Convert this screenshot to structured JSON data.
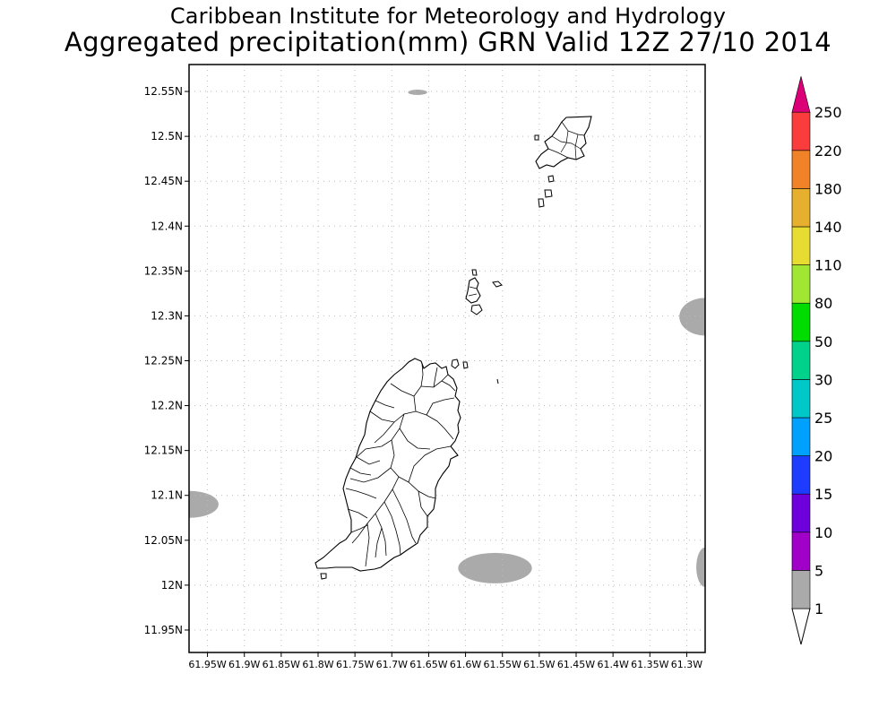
{
  "header": {
    "title": "Caribbean Institute for Meteorology and Hydrology",
    "subtitle": "Aggregated precipitation(mm) GRN Valid 12Z 27/10 2014"
  },
  "map": {
    "lon_range": [
      -61.975,
      -61.275
    ],
    "lat_range": [
      11.925,
      12.58
    ],
    "x_ticks": [
      -61.95,
      -61.9,
      -61.85,
      -61.8,
      -61.75,
      -61.7,
      -61.65,
      -61.6,
      -61.55,
      -61.5,
      -61.45,
      -61.4,
      -61.35,
      -61.3
    ],
    "x_tick_labels": [
      "61.95W",
      "61.9W",
      "61.85W",
      "61.8W",
      "61.75W",
      "61.7W",
      "61.65W",
      "61.6W",
      "61.55W",
      "61.5W",
      "61.45W",
      "61.4W",
      "61.35W",
      "61.3W"
    ],
    "y_ticks": [
      11.95,
      12.0,
      12.05,
      12.1,
      12.15,
      12.2,
      12.25,
      12.3,
      12.35,
      12.4,
      12.45,
      12.5,
      12.55
    ],
    "y_tick_labels": [
      "11.95N",
      "12N",
      "12.05N",
      "12.1N",
      "12.15N",
      "12.2N",
      "12.25N",
      "12.3N",
      "12.35N",
      "12.4N",
      "12.45N",
      "12.5N",
      "12.55N"
    ],
    "grid": true,
    "precip_color": "#aaaaaa",
    "precip_areas": [
      {
        "name": "north-patch",
        "lon": -61.665,
        "lat": 12.549,
        "rlon": 0.013,
        "rlat": 0.003
      },
      {
        "name": "west-patch",
        "lon": -61.975,
        "lat": 12.09,
        "rlon": 0.04,
        "rlat": 0.015
      },
      {
        "name": "south-patch",
        "lon": -61.56,
        "lat": 12.019,
        "rlon": 0.05,
        "rlat": 0.017
      },
      {
        "name": "east-patch-upper",
        "lon": -61.275,
        "lat": 12.299,
        "rlon": 0.035,
        "rlat": 0.021
      },
      {
        "name": "east-patch-lower",
        "lon": -61.275,
        "lat": 12.02,
        "rlon": 0.012,
        "rlat": 0.022
      }
    ]
  },
  "legend": {
    "labels": [
      "1",
      "5",
      "10",
      "15",
      "20",
      "25",
      "30",
      "50",
      "80",
      "110",
      "140",
      "180",
      "220",
      "250"
    ],
    "colors": [
      "#aaaaaa",
      "#a000c8",
      "#6e00dc",
      "#1e3cff",
      "#00a0ff",
      "#00c8c8",
      "#00d28c",
      "#00dc00",
      "#a0e632",
      "#e6dc32",
      "#e6af2d",
      "#f08228",
      "#fa3c3c",
      "#dc0078"
    ]
  }
}
